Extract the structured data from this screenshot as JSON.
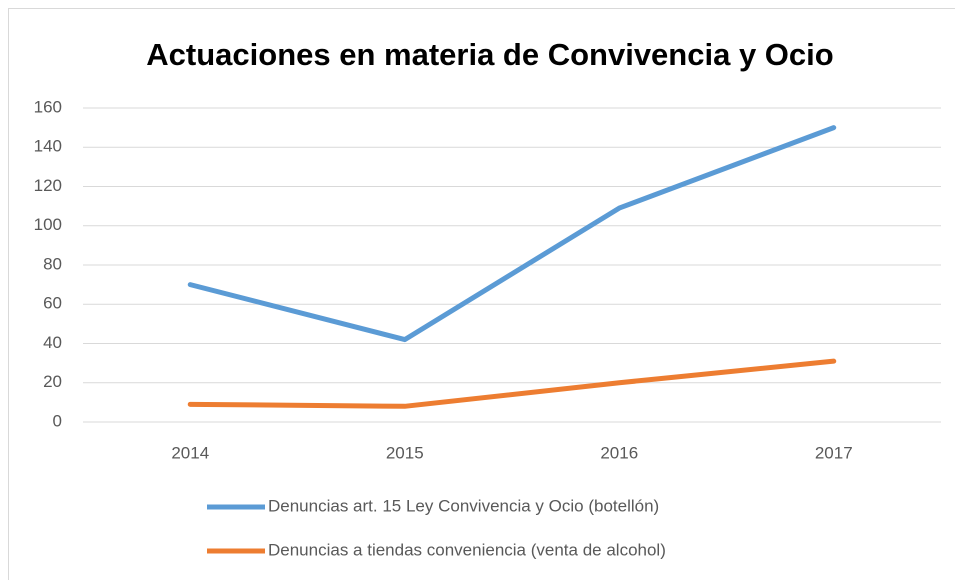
{
  "chart_data": {
    "type": "line",
    "title": "Actuaciones en materia de Convivencia y Ocio",
    "categories": [
      "2014",
      "2015",
      "2016",
      "2017"
    ],
    "series": [
      {
        "name": "Denuncias art. 15 Ley Convivencia y Ocio (botellón)",
        "color": "#5b9bd5",
        "values": [
          70,
          42,
          109,
          150
        ]
      },
      {
        "name": "Denuncias a tiendas conveniencia (venta de alcohol)",
        "color": "#ed7d31",
        "values": [
          9,
          8,
          20,
          31
        ]
      }
    ],
    "ylim": [
      0,
      160
    ],
    "yticks": [
      0,
      20,
      40,
      60,
      80,
      100,
      120,
      140,
      160
    ],
    "grid": true,
    "legend": "bottom"
  }
}
